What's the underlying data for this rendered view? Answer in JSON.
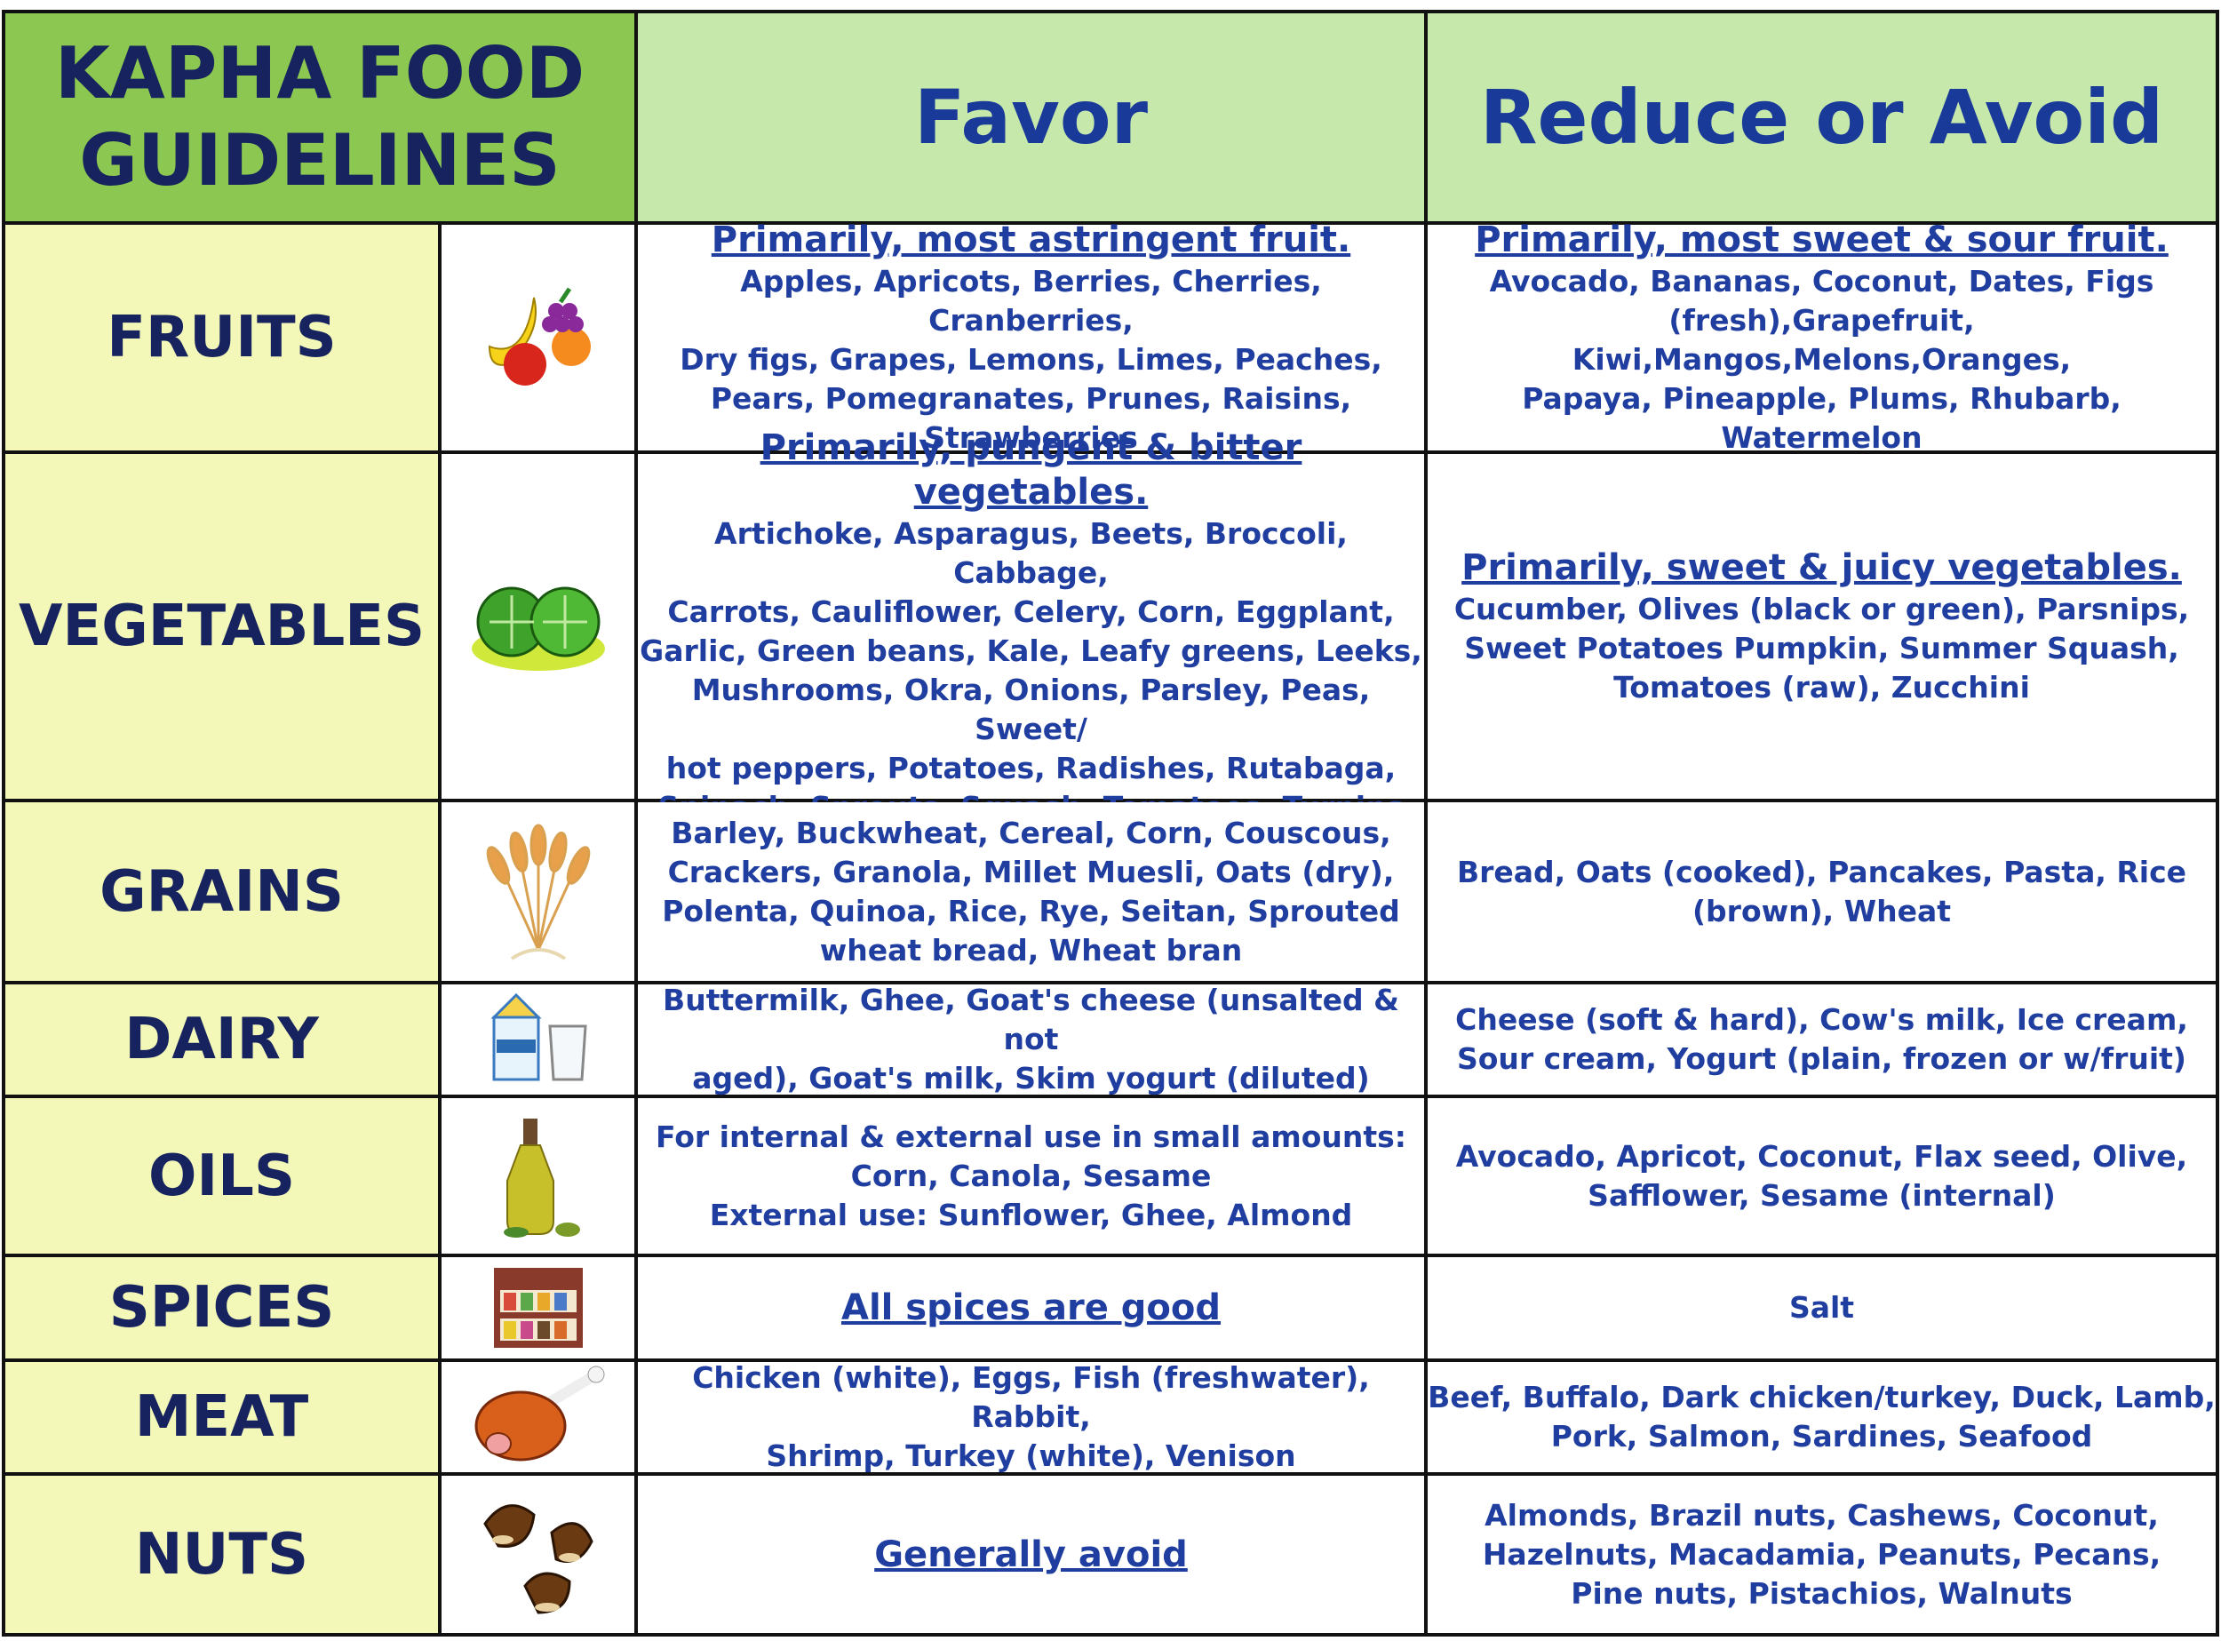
{
  "header": {
    "title": "KAPHA FOOD GUIDELINES",
    "favor": "Favor",
    "avoid": "Reduce or Avoid"
  },
  "rows": [
    {
      "category": "FRUITS",
      "favor": {
        "heading": "Primarily, most astringent fruit.",
        "lines": [
          "Apples, Apricots, Berries, Cherries, Cranberries,",
          "Dry figs, Grapes, Lemons, Limes, Peaches,",
          "Pears, Pomegranates, Prunes, Raisins,",
          "Strawberries"
        ]
      },
      "avoid": {
        "heading": "Primarily, most sweet & sour fruit.",
        "lines": [
          "Avocado, Bananas, Coconut, Dates, Figs",
          "(fresh),Grapefruit, Kiwi,Mangos,Melons,Oranges,",
          "Papaya, Pineapple, Plums, Rhubarb, Watermelon"
        ]
      }
    },
    {
      "category": "VEGETABLES",
      "favor": {
        "heading": "Primarily, pungent & bitter vegetables.",
        "lines": [
          "Artichoke, Asparagus, Beets, Broccoli, Cabbage,",
          "Carrots, Cauliflower, Celery, Corn, Eggplant,",
          "Garlic, Green beans, Kale, Leafy greens, Leeks,",
          "Mushrooms, Okra, Onions, Parsley, Peas, Sweet/",
          "hot peppers, Potatoes, Radishes, Rutabaga,",
          "Spinach, Sprouts, Squash, Tomatoes, Turnips"
        ]
      },
      "avoid": {
        "heading": "Primarily, sweet & juicy vegetables.",
        "lines": [
          "Cucumber, Olives (black or green), Parsnips,",
          "Sweet Potatoes Pumpkin, Summer Squash,",
          "Tomatoes (raw), Zucchini"
        ]
      }
    },
    {
      "category": "GRAINS",
      "favor": {
        "lines": [
          "Barley, Buckwheat, Cereal, Corn, Couscous,",
          "Crackers, Granola, Millet Muesli, Oats (dry),",
          "Polenta, Quinoa, Rice, Rye, Seitan, Sprouted",
          "wheat bread, Wheat bran"
        ]
      },
      "avoid": {
        "lines": [
          "Bread, Oats (cooked), Pancakes, Pasta, Rice",
          "(brown), Wheat"
        ]
      }
    },
    {
      "category": "DAIRY",
      "favor": {
        "lines": [
          "Buttermilk, Ghee, Goat's cheese (unsalted & not",
          "aged), Goat's milk, Skim yogurt (diluted)"
        ]
      },
      "avoid": {
        "lines": [
          "Cheese (soft & hard), Cow's milk, Ice cream,",
          "Sour cream, Yogurt (plain, frozen or w/fruit)"
        ]
      }
    },
    {
      "category": "OILS",
      "favor": {
        "lines": [
          "For internal & external use in small amounts:",
          "Corn, Canola, Sesame",
          "External use: Sunflower, Ghee, Almond"
        ]
      },
      "avoid": {
        "lines": [
          "Avocado, Apricot, Coconut, Flax seed, Olive,",
          "Safflower, Sesame (internal)"
        ]
      }
    },
    {
      "category": "SPICES",
      "favor": {
        "heading": "All spices are good"
      },
      "avoid": {
        "lines": [
          "Salt"
        ]
      }
    },
    {
      "category": "MEAT",
      "favor": {
        "lines": [
          "Chicken (white), Eggs, Fish (freshwater), Rabbit,",
          "Shrimp, Turkey (white), Venison"
        ]
      },
      "avoid": {
        "lines": [
          "Beef, Buffalo, Dark chicken/turkey, Duck, Lamb,",
          "Pork, Salmon, Sardines, Seafood"
        ]
      }
    },
    {
      "category": "NUTS",
      "favor": {
        "heading": "Generally avoid"
      },
      "avoid": {
        "lines": [
          "Almonds, Brazil nuts, Cashews, Coconut,",
          "Hazelnuts, Macadamia, Peanuts, Pecans,",
          "Pine nuts, Pistachios, Walnuts"
        ]
      }
    }
  ]
}
